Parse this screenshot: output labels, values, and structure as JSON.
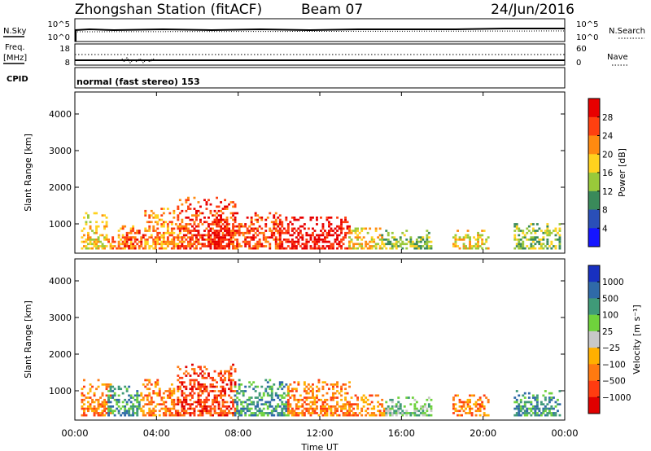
{
  "header": {
    "station": "Zhongshan Station (fitACF)",
    "beam": "Beam 07",
    "date": "24/Jun/2016"
  },
  "nsky_panel": {
    "left_label": "N.Sky",
    "left_ticks": [
      "10^5",
      "10^0"
    ],
    "right_ticks": [
      "10^5",
      "10^0"
    ],
    "right_label": "N.Search"
  },
  "freq_panel": {
    "left_label_1": "Freq.",
    "left_label_2": "[MHz]",
    "left_ticks": [
      "18",
      "8"
    ],
    "right_ticks": [
      "60",
      "0"
    ],
    "right_label": "Nave"
  },
  "cpid": {
    "label": "CPID",
    "mode_text": "normal (fast stereo) 153"
  },
  "chart_data": [
    {
      "type": "heatmap",
      "panel": "power",
      "ylabel": "Slant Range [km]",
      "yticks": [
        1000,
        2000,
        3000,
        4000
      ],
      "ylim": [
        200,
        4600
      ],
      "xlim": [
        0,
        24
      ],
      "colorbar_label": "Power [dB]",
      "colorbar_ticks": [
        "4",
        "8",
        "12",
        "16",
        "20",
        "24",
        "28"
      ],
      "colorbar_colors": [
        "#1515ff",
        "#2a4fb8",
        "#3a8a5a",
        "#99c93a",
        "#ffd21e",
        "#ff8a10",
        "#ff4010",
        "#e80000"
      ],
      "regions": [
        {
          "t0": 0.3,
          "t1": 1.6,
          "r0": 300,
          "r1": 1300,
          "level": 4
        },
        {
          "t0": 1.6,
          "t1": 3.0,
          "r0": 300,
          "r1": 1000,
          "level": 5
        },
        {
          "t0": 2.2,
          "t1": 3.4,
          "r0": 300,
          "r1": 800,
          "level": 6
        },
        {
          "t0": 3.4,
          "t1": 5.2,
          "r0": 300,
          "r1": 1400,
          "level": 5
        },
        {
          "t0": 5.0,
          "t1": 7.8,
          "r0": 300,
          "r1": 1700,
          "level": 6
        },
        {
          "t0": 6.5,
          "t1": 7.5,
          "r0": 300,
          "r1": 1200,
          "level": 7
        },
        {
          "t0": 7.8,
          "t1": 10.0,
          "r0": 300,
          "r1": 1300,
          "level": 6
        },
        {
          "t0": 10.0,
          "t1": 13.4,
          "r0": 300,
          "r1": 1200,
          "level": 7
        },
        {
          "t0": 13.4,
          "t1": 15.0,
          "r0": 300,
          "r1": 900,
          "level": 4
        },
        {
          "t0": 15.0,
          "t1": 17.5,
          "r0": 300,
          "r1": 800,
          "level": 3
        },
        {
          "t0": 18.5,
          "t1": 20.3,
          "r0": 300,
          "r1": 800,
          "level": 4
        },
        {
          "t0": 21.5,
          "t1": 23.8,
          "r0": 300,
          "r1": 1000,
          "level": 3
        }
      ]
    },
    {
      "type": "heatmap",
      "panel": "velocity",
      "ylabel": "Slant Range [km]",
      "yticks": [
        1000,
        2000,
        3000,
        4000
      ],
      "ylim": [
        200,
        4600
      ],
      "xlim": [
        0,
        24
      ],
      "xticks": [
        "00:00",
        "04:00",
        "08:00",
        "12:00",
        "16:00",
        "20:00",
        "00:00"
      ],
      "xlabel": "Time UT",
      "colorbar_label": "Velocity [m s⁻¹]",
      "colorbar_ticks": [
        "1000",
        "500",
        "100",
        "25",
        "−25",
        "−100",
        "−500",
        "−1000"
      ],
      "colorbar_colors": [
        "#1830c0",
        "#2f6aa8",
        "#3f9a78",
        "#6fd23c",
        "#c8c8c8",
        "#ffb000",
        "#ff7a10",
        "#ff3c10",
        "#e00000"
      ],
      "regions": [
        {
          "t0": 0.3,
          "t1": 1.8,
          "r0": 300,
          "r1": 1300,
          "level": 6
        },
        {
          "t0": 1.6,
          "t1": 3.2,
          "r0": 300,
          "r1": 1100,
          "level": 2
        },
        {
          "t0": 3.2,
          "t1": 5.0,
          "r0": 300,
          "r1": 1300,
          "level": 6
        },
        {
          "t0": 5.0,
          "t1": 7.8,
          "r0": 300,
          "r1": 1700,
          "level": 7
        },
        {
          "t0": 7.8,
          "t1": 10.4,
          "r0": 300,
          "r1": 1300,
          "level": 2
        },
        {
          "t0": 10.4,
          "t1": 13.4,
          "r0": 300,
          "r1": 1300,
          "level": 6
        },
        {
          "t0": 13.4,
          "t1": 15.2,
          "r0": 300,
          "r1": 900,
          "level": 6
        },
        {
          "t0": 15.2,
          "t1": 17.5,
          "r0": 300,
          "r1": 800,
          "level": 3
        },
        {
          "t0": 18.5,
          "t1": 20.3,
          "r0": 300,
          "r1": 900,
          "level": 6
        },
        {
          "t0": 21.5,
          "t1": 23.8,
          "r0": 300,
          "r1": 1000,
          "level": 2
        }
      ]
    }
  ]
}
